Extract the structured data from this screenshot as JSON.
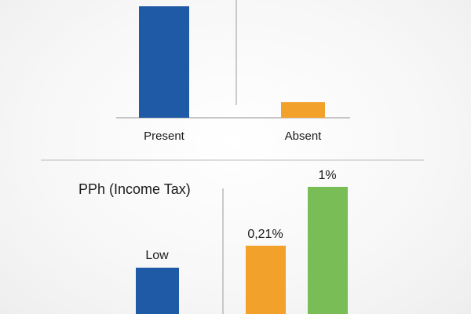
{
  "colors": {
    "blue": "#1f5aa6",
    "orange": "#f2a22a",
    "green": "#79bd56",
    "axis": "#9a9a9a",
    "divider": "#bdbdbd"
  },
  "chart_data": [
    {
      "type": "bar",
      "title": "",
      "xlabel": "",
      "ylabel": "",
      "categories": [
        "Present",
        "Absent"
      ],
      "values": [
        1,
        0.1
      ],
      "value_scale": "relative height (no values printed)",
      "bar_colors": [
        "blue",
        "orange"
      ],
      "grid": false,
      "legend": "none"
    },
    {
      "type": "bar",
      "title": "PPh (Income Tax)",
      "xlabel": "",
      "ylabel": "",
      "categories": [
        "Low",
        "",
        ""
      ],
      "values": [
        null,
        0.21,
        1
      ],
      "data_labels": [
        "Low",
        "0,21%",
        "1%"
      ],
      "value_unit": "%",
      "bar_colors": [
        "blue",
        "orange",
        "green"
      ],
      "grid": false,
      "legend": "none"
    }
  ]
}
